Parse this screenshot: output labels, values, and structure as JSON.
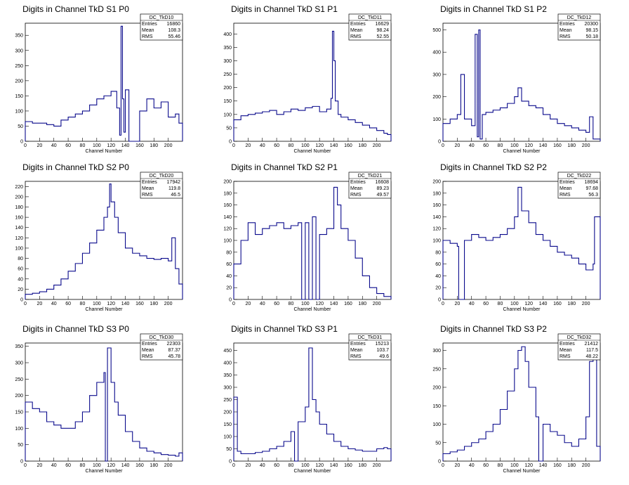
{
  "chart_data": [
    {
      "type": "histogram",
      "title": "Digits in Channel TkD S1 P0",
      "xlabel": "Channel Number",
      "stats": {
        "name": "DC_TkD10",
        "entries": "16860",
        "mean": "108.3",
        "rms": "55.46"
      },
      "xlim": [
        0,
        220
      ],
      "xticks": [
        0,
        20,
        40,
        60,
        80,
        100,
        120,
        140,
        160,
        180,
        200
      ],
      "ylim": [
        0,
        390
      ],
      "yticks": [
        0,
        50,
        100,
        150,
        200,
        250,
        300,
        350
      ],
      "x": [
        0,
        10,
        20,
        30,
        40,
        50,
        60,
        70,
        80,
        90,
        100,
        110,
        120,
        128,
        132,
        134,
        136,
        138,
        140,
        145,
        150,
        160,
        170,
        180,
        190,
        200,
        210,
        215
      ],
      "values": [
        65,
        60,
        60,
        55,
        50,
        70,
        80,
        90,
        100,
        120,
        140,
        150,
        165,
        110,
        20,
        380,
        140,
        30,
        170,
        0,
        0,
        100,
        140,
        110,
        130,
        80,
        90,
        60
      ]
    },
    {
      "type": "histogram",
      "title": "Digits in Channel TkD S1 P1",
      "xlabel": "Channel Number",
      "stats": {
        "name": "DC_TkD11",
        "entries": "16629",
        "mean": "98.24",
        "rms": "52.55"
      },
      "xlim": [
        0,
        220
      ],
      "xticks": [
        0,
        20,
        40,
        60,
        80,
        100,
        120,
        140,
        160,
        180,
        200
      ],
      "ylim": [
        0,
        440
      ],
      "yticks": [
        0,
        50,
        100,
        150,
        200,
        250,
        300,
        350,
        400
      ],
      "x": [
        0,
        10,
        20,
        30,
        40,
        50,
        60,
        70,
        80,
        90,
        100,
        110,
        120,
        130,
        136,
        138,
        140,
        142,
        146,
        150,
        160,
        170,
        180,
        190,
        200,
        210,
        215
      ],
      "values": [
        80,
        95,
        100,
        105,
        110,
        115,
        100,
        110,
        120,
        115,
        125,
        130,
        110,
        120,
        160,
        410,
        300,
        150,
        100,
        90,
        80,
        70,
        60,
        50,
        40,
        30,
        25
      ]
    },
    {
      "type": "histogram",
      "title": "Digits in Channel TkD S1 P2",
      "xlabel": "Channel Number",
      "stats": {
        "name": "DC_TkD12",
        "entries": "20300",
        "mean": "98.15",
        "rms": "50.18"
      },
      "xlim": [
        0,
        220
      ],
      "xticks": [
        0,
        20,
        40,
        60,
        80,
        100,
        120,
        140,
        160,
        180,
        200
      ],
      "ylim": [
        0,
        530
      ],
      "yticks": [
        0,
        100,
        200,
        300,
        400,
        500
      ],
      "x": [
        0,
        10,
        20,
        25,
        30,
        40,
        45,
        48,
        50,
        52,
        55,
        60,
        70,
        80,
        90,
        100,
        105,
        110,
        120,
        130,
        140,
        150,
        160,
        170,
        180,
        190,
        200,
        205,
        210
      ],
      "values": [
        80,
        100,
        120,
        300,
        100,
        70,
        480,
        20,
        500,
        10,
        120,
        130,
        140,
        150,
        170,
        200,
        240,
        180,
        160,
        150,
        120,
        100,
        80,
        70,
        60,
        50,
        40,
        110,
        10
      ]
    },
    {
      "type": "histogram",
      "title": "Digits in Channel TkD S2 P0",
      "xlabel": "Channel Number",
      "stats": {
        "name": "DC_TkD20",
        "entries": "17942",
        "mean": "119.8",
        "rms": "46.5"
      },
      "xlim": [
        0,
        220
      ],
      "xticks": [
        0,
        20,
        40,
        60,
        80,
        100,
        120,
        140,
        160,
        180,
        200
      ],
      "ylim": [
        0,
        230
      ],
      "yticks": [
        0,
        20,
        40,
        60,
        80,
        100,
        120,
        140,
        160,
        180,
        200,
        220
      ],
      "x": [
        0,
        10,
        20,
        30,
        40,
        50,
        60,
        70,
        80,
        90,
        100,
        110,
        115,
        118,
        120,
        125,
        130,
        140,
        150,
        160,
        170,
        180,
        190,
        200,
        205,
        210,
        215
      ],
      "values": [
        10,
        12,
        15,
        20,
        28,
        40,
        55,
        70,
        90,
        110,
        135,
        160,
        180,
        225,
        190,
        160,
        130,
        100,
        90,
        85,
        80,
        78,
        80,
        75,
        120,
        60,
        30
      ]
    },
    {
      "type": "histogram",
      "title": "Digits in Channel TkD S2 P1",
      "xlabel": "Channel Number",
      "stats": {
        "name": "DC_TkD21",
        "entries": "16608",
        "mean": "89.23",
        "rms": "49.57"
      },
      "xlim": [
        0,
        220
      ],
      "xticks": [
        0,
        20,
        40,
        60,
        80,
        100,
        120,
        140,
        160,
        180,
        200
      ],
      "ylim": [
        0,
        200
      ],
      "yticks": [
        0,
        20,
        40,
        60,
        80,
        100,
        120,
        140,
        160,
        180,
        200
      ],
      "x": [
        0,
        10,
        20,
        30,
        40,
        50,
        60,
        70,
        80,
        90,
        95,
        100,
        105,
        110,
        115,
        120,
        130,
        140,
        145,
        150,
        160,
        170,
        180,
        190,
        200,
        210
      ],
      "values": [
        60,
        100,
        130,
        110,
        120,
        125,
        130,
        120,
        125,
        130,
        0,
        130,
        0,
        140,
        0,
        110,
        120,
        190,
        160,
        120,
        100,
        70,
        40,
        20,
        10,
        5
      ]
    },
    {
      "type": "histogram",
      "title": "Digits in Channel TkD S2 P2",
      "xlabel": "Channel Number",
      "stats": {
        "name": "DC_TkD22",
        "entries": "18694",
        "mean": "97.68",
        "rms": "56.3"
      },
      "xlim": [
        0,
        220
      ],
      "xticks": [
        0,
        20,
        40,
        60,
        80,
        100,
        120,
        140,
        160,
        180,
        200
      ],
      "ylim": [
        0,
        200
      ],
      "yticks": [
        0,
        20,
        40,
        60,
        80,
        100,
        120,
        140,
        160,
        180,
        200
      ],
      "x": [
        0,
        10,
        20,
        22,
        30,
        40,
        50,
        60,
        70,
        80,
        90,
        100,
        105,
        110,
        120,
        130,
        140,
        150,
        160,
        170,
        180,
        190,
        200,
        210,
        212
      ],
      "values": [
        100,
        95,
        90,
        0,
        100,
        110,
        105,
        100,
        105,
        110,
        120,
        140,
        190,
        150,
        130,
        110,
        100,
        90,
        80,
        75,
        70,
        60,
        50,
        60,
        140
      ]
    },
    {
      "type": "histogram",
      "title": "Digits in Channel TkD S3 P0",
      "xlabel": "Channel Number",
      "stats": {
        "name": "DC_TkD30",
        "entries": "22303",
        "mean": "87.37",
        "rms": "45.78"
      },
      "xlim": [
        0,
        220
      ],
      "xticks": [
        0,
        20,
        40,
        60,
        80,
        100,
        120,
        140,
        160,
        180,
        200
      ],
      "ylim": [
        0,
        360
      ],
      "yticks": [
        0,
        50,
        100,
        150,
        200,
        250,
        300,
        350
      ],
      "x": [
        0,
        10,
        20,
        30,
        40,
        50,
        60,
        70,
        80,
        90,
        100,
        110,
        112,
        115,
        120,
        125,
        130,
        140,
        150,
        160,
        170,
        180,
        190,
        200,
        210,
        215
      ],
      "values": [
        180,
        160,
        150,
        120,
        110,
        100,
        100,
        120,
        150,
        200,
        240,
        270,
        0,
        345,
        240,
        180,
        140,
        90,
        60,
        40,
        30,
        25,
        20,
        18,
        15,
        25
      ]
    },
    {
      "type": "histogram",
      "title": "Digits in Channel TkD S3 P1",
      "xlabel": "Channel Number",
      "stats": {
        "name": "DC_TkD31",
        "entries": "15213",
        "mean": "103.7",
        "rms": "49.6"
      },
      "xlim": [
        0,
        220
      ],
      "xticks": [
        0,
        20,
        40,
        60,
        80,
        100,
        120,
        140,
        160,
        180,
        200
      ],
      "ylim": [
        0,
        480
      ],
      "yticks": [
        0,
        50,
        100,
        150,
        200,
        250,
        300,
        350,
        400,
        450
      ],
      "x": [
        0,
        5,
        10,
        20,
        30,
        40,
        50,
        60,
        70,
        80,
        85,
        90,
        100,
        105,
        110,
        115,
        120,
        130,
        140,
        150,
        160,
        170,
        180,
        190,
        200,
        210,
        215
      ],
      "values": [
        260,
        40,
        30,
        30,
        35,
        40,
        50,
        60,
        80,
        120,
        0,
        160,
        220,
        460,
        250,
        200,
        150,
        110,
        80,
        60,
        50,
        45,
        40,
        40,
        50,
        55,
        50
      ]
    },
    {
      "type": "histogram",
      "title": "Digits in Channel TkD S3 P2",
      "xlabel": "Channel Number",
      "stats": {
        "name": "DC_TkD32",
        "entries": "21412",
        "mean": "117.5",
        "rms": "48.22"
      },
      "xlim": [
        0,
        220
      ],
      "xticks": [
        0,
        20,
        40,
        60,
        80,
        100,
        120,
        140,
        160,
        180,
        200
      ],
      "ylim": [
        0,
        320
      ],
      "yticks": [
        0,
        50,
        100,
        150,
        200,
        250,
        300
      ],
      "x": [
        0,
        10,
        20,
        30,
        40,
        50,
        60,
        70,
        80,
        90,
        100,
        105,
        110,
        115,
        120,
        130,
        134,
        140,
        150,
        160,
        170,
        180,
        190,
        200,
        205,
        210,
        215
      ],
      "values": [
        20,
        25,
        30,
        40,
        50,
        60,
        80,
        100,
        140,
        190,
        250,
        300,
        310,
        270,
        200,
        120,
        0,
        100,
        80,
        70,
        50,
        40,
        60,
        120,
        270,
        300,
        40
      ]
    }
  ]
}
